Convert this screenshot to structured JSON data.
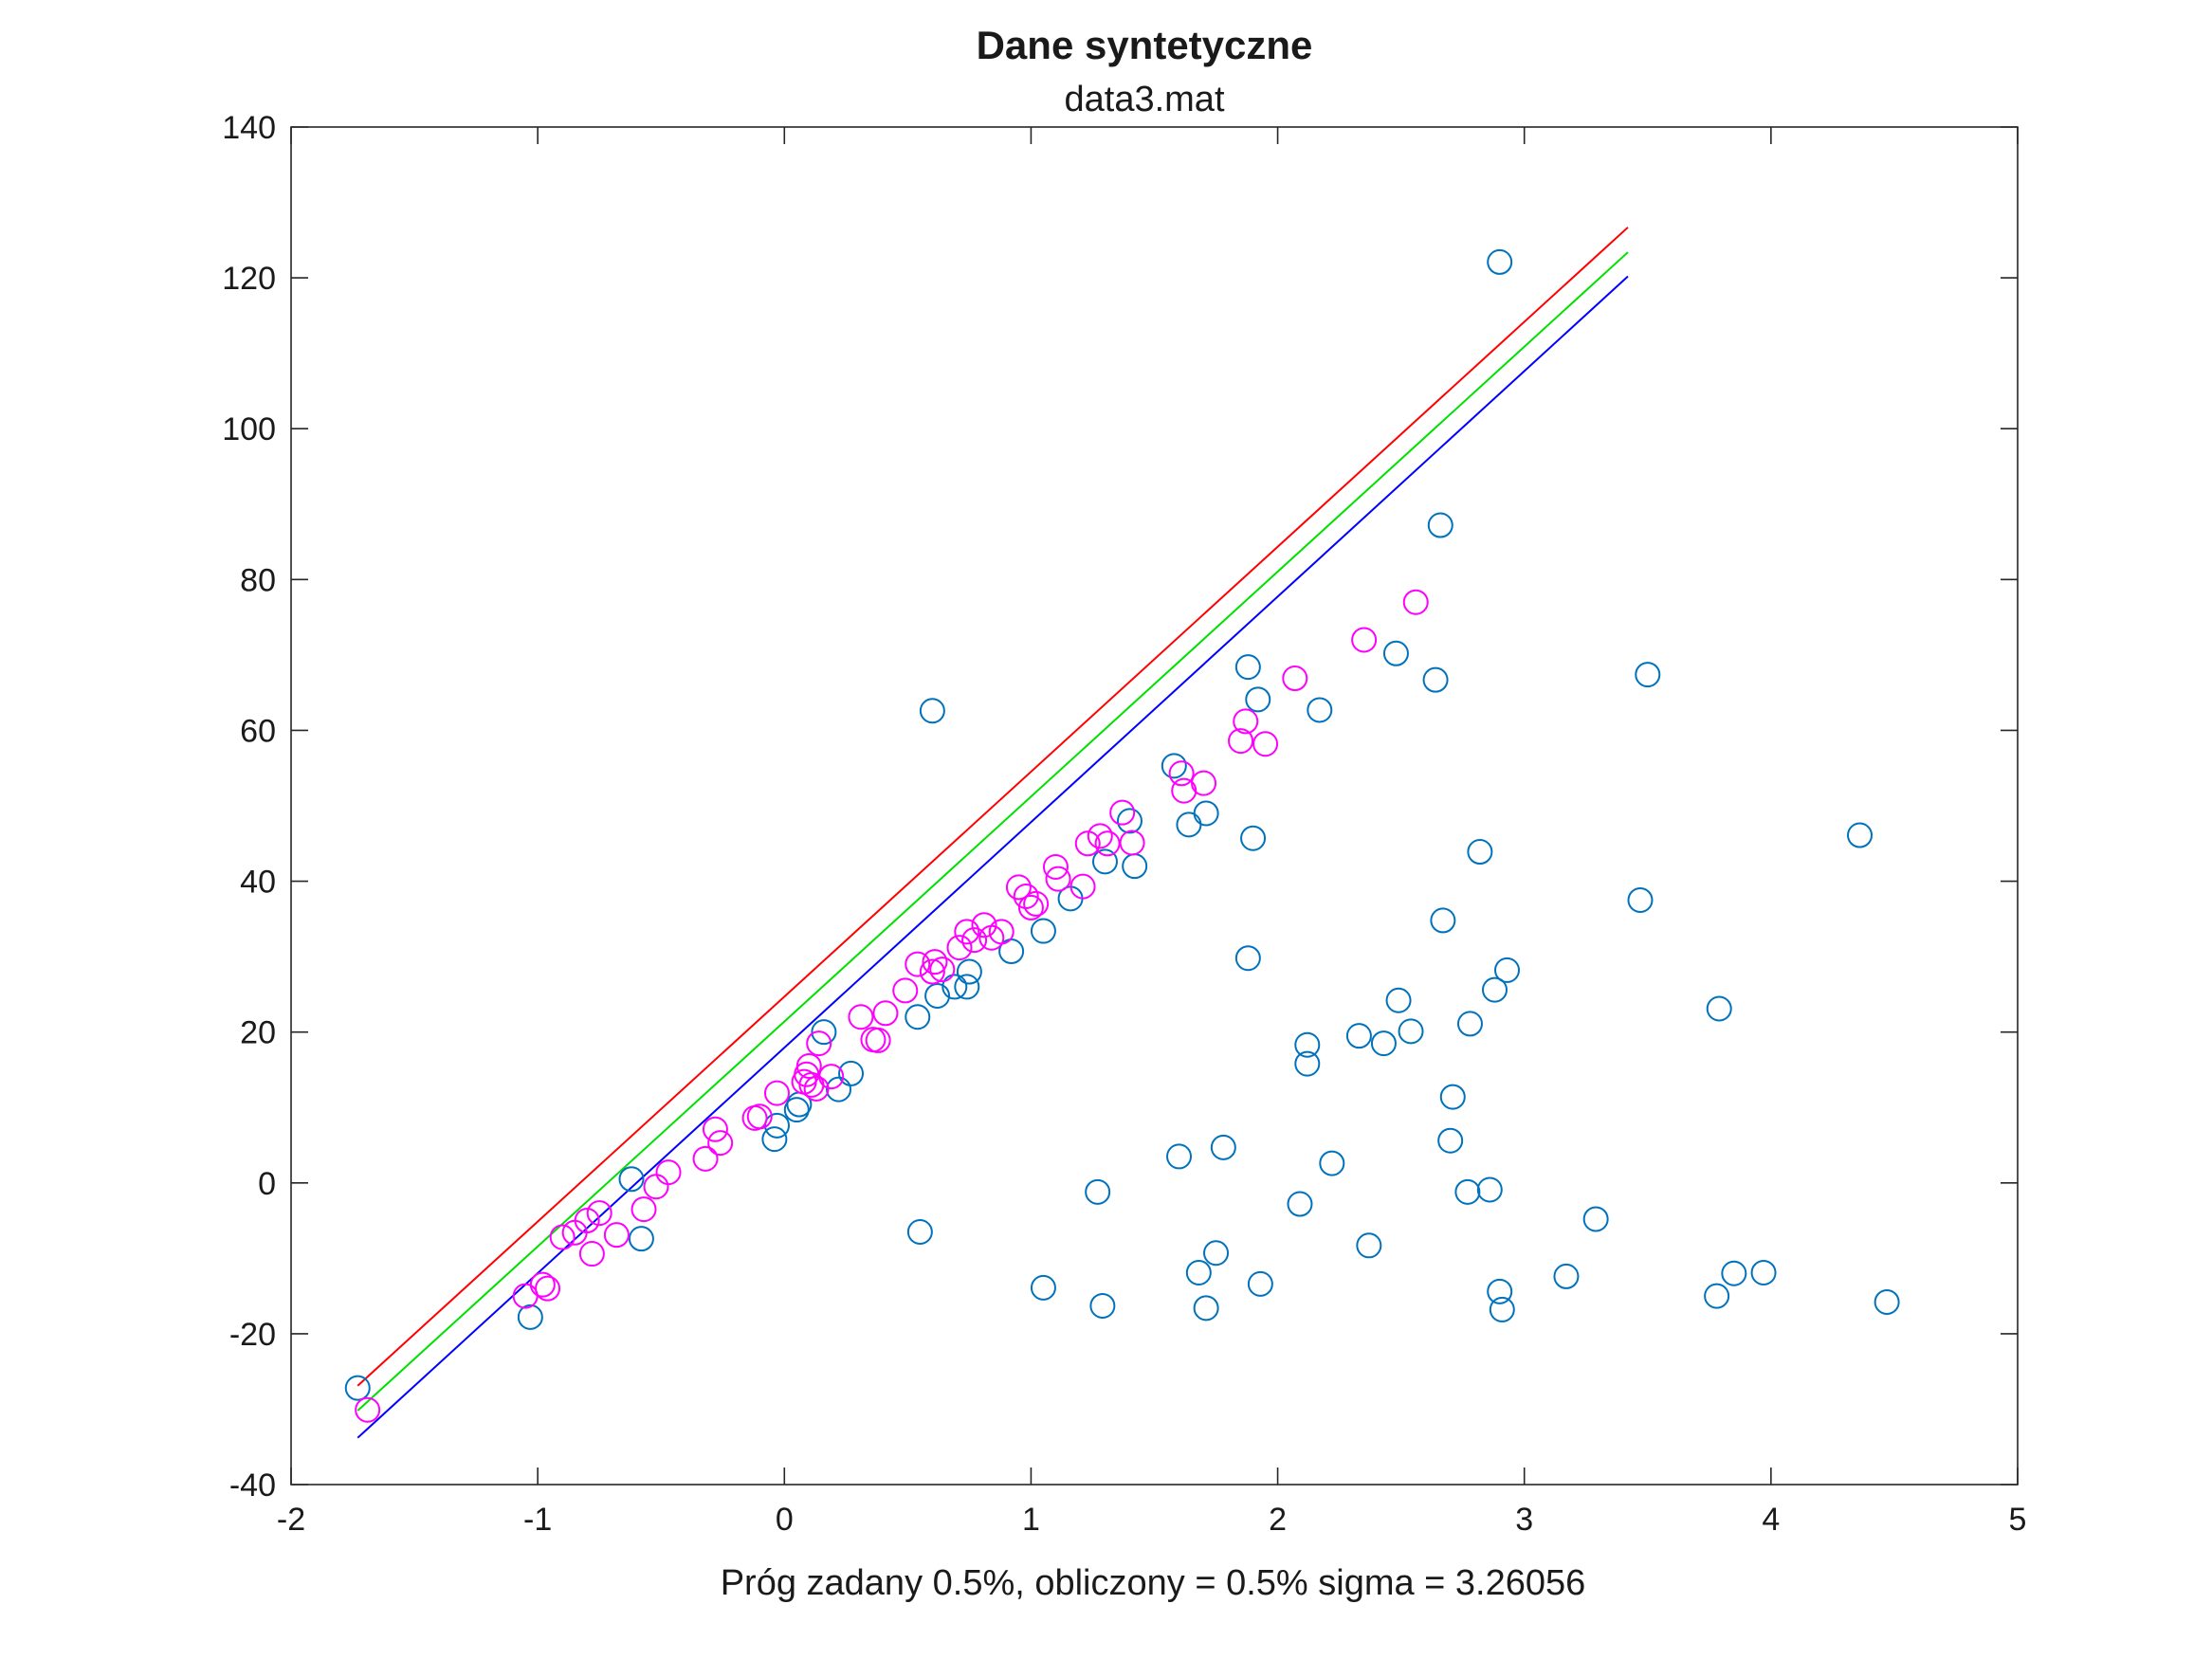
{
  "chart_data": {
    "type": "scatter",
    "title": "Dane syntetyczne",
    "subtitle": "data3.mat",
    "xlabel": "Próg zadany 0.5%, obliczony = 0.5% sigma = 3.26056",
    "ylabel": "",
    "xlim": [
      -2,
      5
    ],
    "ylim": [
      -40,
      140
    ],
    "xticks": [
      "-2",
      "-1",
      "0",
      "1",
      "2",
      "3",
      "4",
      "5"
    ],
    "yticks": [
      "-40",
      "-20",
      "0",
      "20",
      "40",
      "60",
      "80",
      "100",
      "120",
      "140"
    ],
    "grid": false,
    "lines": [
      {
        "color": "#ff0000",
        "x": [
          -1.73,
          3.42
        ],
        "y": [
          -26.9,
          126.7
        ]
      },
      {
        "color": "#00e000",
        "x": [
          -1.73,
          3.42
        ],
        "y": [
          -30.2,
          123.4
        ]
      },
      {
        "color": "#0000ff",
        "x": [
          -1.73,
          3.42
        ],
        "y": [
          -33.8,
          120.2
        ]
      }
    ],
    "series": [
      {
        "color": "#0072bd",
        "marker": "circle",
        "points": [
          [
            -1.73,
            -27.2
          ],
          [
            -1.03,
            -17.8
          ],
          [
            -0.62,
            0.5
          ],
          [
            -0.58,
            -7.4
          ],
          [
            -0.04,
            5.8
          ],
          [
            -0.03,
            7.6
          ],
          [
            0.05,
            9.7
          ],
          [
            0.06,
            10.4
          ],
          [
            0.16,
            20.0
          ],
          [
            0.22,
            12.4
          ],
          [
            0.27,
            14.5
          ],
          [
            0.54,
            22.0
          ],
          [
            0.55,
            -6.5
          ],
          [
            0.6,
            62.6
          ],
          [
            0.62,
            24.8
          ],
          [
            0.69,
            26.0
          ],
          [
            0.74,
            26.0
          ],
          [
            0.75,
            28.0
          ],
          [
            0.92,
            30.7
          ],
          [
            1.05,
            33.4
          ],
          [
            1.05,
            -13.9
          ],
          [
            1.16,
            37.7
          ],
          [
            1.27,
            -1.2
          ],
          [
            1.29,
            -16.3
          ],
          [
            1.3,
            42.6
          ],
          [
            1.4,
            48.0
          ],
          [
            1.42,
            42.0
          ],
          [
            1.58,
            55.3
          ],
          [
            1.6,
            3.5
          ],
          [
            1.64,
            47.5
          ],
          [
            1.68,
            -11.9
          ],
          [
            1.71,
            49.0
          ],
          [
            1.71,
            -16.6
          ],
          [
            1.75,
            -9.3
          ],
          [
            1.78,
            4.7
          ],
          [
            1.88,
            68.4
          ],
          [
            1.88,
            29.8
          ],
          [
            1.9,
            45.7
          ],
          [
            1.92,
            64.1
          ],
          [
            1.93,
            -13.4
          ],
          [
            2.09,
            -2.8
          ],
          [
            2.12,
            18.3
          ],
          [
            2.12,
            15.8
          ],
          [
            2.17,
            62.7
          ],
          [
            2.22,
            2.6
          ],
          [
            2.33,
            19.5
          ],
          [
            2.37,
            -8.3
          ],
          [
            2.43,
            18.5
          ],
          [
            2.48,
            70.2
          ],
          [
            2.49,
            24.2
          ],
          [
            2.54,
            20.1
          ],
          [
            2.64,
            66.7
          ],
          [
            2.66,
            87.2
          ],
          [
            2.67,
            34.8
          ],
          [
            2.7,
            5.6
          ],
          [
            2.71,
            11.4
          ],
          [
            2.77,
            -1.2
          ],
          [
            2.78,
            21.1
          ],
          [
            2.82,
            43.9
          ],
          [
            2.86,
            -0.9
          ],
          [
            2.88,
            25.6
          ],
          [
            2.9,
            122.1
          ],
          [
            2.9,
            -14.4
          ],
          [
            2.91,
            -16.8
          ],
          [
            2.93,
            28.2
          ],
          [
            3.17,
            -12.4
          ],
          [
            3.29,
            -4.8
          ],
          [
            3.47,
            37.5
          ],
          [
            3.5,
            67.4
          ],
          [
            3.78,
            -15.0
          ],
          [
            3.79,
            23.1
          ],
          [
            3.85,
            -12.0
          ],
          [
            3.97,
            -11.9
          ],
          [
            4.36,
            46.1
          ],
          [
            4.47,
            -15.8
          ]
        ]
      },
      {
        "color": "#ff00ff",
        "marker": "circle",
        "points": [
          [
            -1.69,
            -30.1
          ],
          [
            -1.05,
            -15.0
          ],
          [
            -0.98,
            -13.5
          ],
          [
            -0.96,
            -14.0
          ],
          [
            -0.9,
            -7.2
          ],
          [
            -0.85,
            -6.6
          ],
          [
            -0.8,
            -5.0
          ],
          [
            -0.78,
            -9.4
          ],
          [
            -0.75,
            -4.0
          ],
          [
            -0.68,
            -6.9
          ],
          [
            -0.57,
            -3.5
          ],
          [
            -0.52,
            -0.5
          ],
          [
            -0.47,
            1.4
          ],
          [
            -0.32,
            3.2
          ],
          [
            -0.28,
            7.1
          ],
          [
            -0.26,
            5.3
          ],
          [
            -0.12,
            8.6
          ],
          [
            -0.1,
            8.8
          ],
          [
            -0.03,
            11.9
          ],
          [
            0.08,
            13.4
          ],
          [
            0.09,
            14.4
          ],
          [
            0.1,
            15.5
          ],
          [
            0.11,
            13.0
          ],
          [
            0.13,
            12.5
          ],
          [
            0.14,
            18.5
          ],
          [
            0.19,
            14.1
          ],
          [
            0.31,
            22.0
          ],
          [
            0.36,
            19.0
          ],
          [
            0.38,
            18.9
          ],
          [
            0.41,
            22.5
          ],
          [
            0.49,
            25.5
          ],
          [
            0.54,
            29.0
          ],
          [
            0.6,
            28.0
          ],
          [
            0.61,
            29.3
          ],
          [
            0.64,
            28.3
          ],
          [
            0.71,
            31.2
          ],
          [
            0.74,
            33.3
          ],
          [
            0.77,
            32.2
          ],
          [
            0.81,
            34.2
          ],
          [
            0.84,
            32.5
          ],
          [
            0.88,
            33.3
          ],
          [
            0.95,
            39.2
          ],
          [
            0.98,
            38.0
          ],
          [
            1.0,
            36.5
          ],
          [
            1.02,
            37.0
          ],
          [
            1.1,
            41.9
          ],
          [
            1.11,
            40.3
          ],
          [
            1.21,
            39.3
          ],
          [
            1.23,
            45.0
          ],
          [
            1.28,
            46.0
          ],
          [
            1.31,
            45.0
          ],
          [
            1.37,
            49.1
          ],
          [
            1.41,
            45.1
          ],
          [
            1.61,
            54.3
          ],
          [
            1.62,
            52.0
          ],
          [
            1.7,
            53.0
          ],
          [
            1.85,
            58.6
          ],
          [
            1.87,
            61.2
          ],
          [
            1.95,
            58.2
          ],
          [
            2.07,
            66.9
          ],
          [
            2.35,
            72.0
          ],
          [
            2.56,
            77.0
          ]
        ]
      }
    ]
  }
}
